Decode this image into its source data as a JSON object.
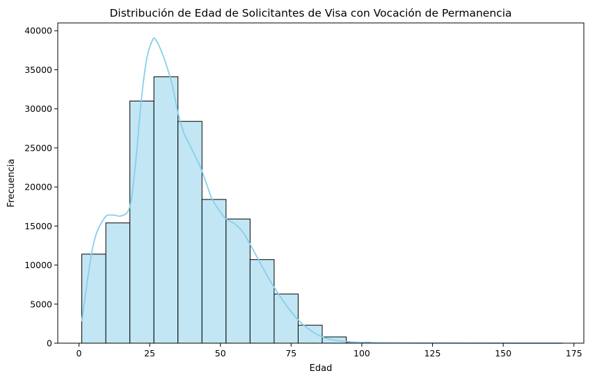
{
  "chart_data": {
    "type": "bar",
    "title": "Distribución de Edad de Solicitantes de Visa con Vocación de Permanencia",
    "xlabel": "Edad",
    "ylabel": "Frecuencia",
    "xlim": [
      -7.5,
      178.5
    ],
    "ylim": [
      0,
      41000
    ],
    "xticks": [
      0,
      25,
      50,
      75,
      100,
      125,
      150,
      175
    ],
    "yticks": [
      0,
      5000,
      10000,
      15000,
      20000,
      25000,
      30000,
      35000,
      40000
    ],
    "grid": false,
    "legend": "none",
    "bins": [
      {
        "x0": 1.0,
        "x1": 9.5,
        "value": 11400
      },
      {
        "x0": 9.5,
        "x1": 18.0,
        "value": 15400
      },
      {
        "x0": 18.0,
        "x1": 26.5,
        "value": 31000
      },
      {
        "x0": 26.5,
        "x1": 35.0,
        "value": 34100
      },
      {
        "x0": 35.0,
        "x1": 43.5,
        "value": 28400
      },
      {
        "x0": 43.5,
        "x1": 52.0,
        "value": 18400
      },
      {
        "x0": 52.0,
        "x1": 60.5,
        "value": 15900
      },
      {
        "x0": 60.5,
        "x1": 69.0,
        "value": 10700
      },
      {
        "x0": 69.0,
        "x1": 77.5,
        "value": 6300
      },
      {
        "x0": 77.5,
        "x1": 86.0,
        "value": 2300
      },
      {
        "x0": 86.0,
        "x1": 94.5,
        "value": 800
      },
      {
        "x0": 94.5,
        "x1": 103.0,
        "value": 120
      },
      {
        "x0": 103.0,
        "x1": 111.5,
        "value": 40
      },
      {
        "x0": 111.5,
        "x1": 120.0,
        "value": 15
      },
      {
        "x0": 120.0,
        "x1": 128.5,
        "value": 10
      },
      {
        "x0": 128.5,
        "x1": 137.0,
        "value": 5
      },
      {
        "x0": 137.0,
        "x1": 145.5,
        "value": 3
      },
      {
        "x0": 145.5,
        "x1": 154.0,
        "value": 2
      },
      {
        "x0": 154.0,
        "x1": 162.5,
        "value": 2
      },
      {
        "x0": 162.5,
        "x1": 171.0,
        "value": 1
      }
    ],
    "kde": {
      "x": [
        1,
        5,
        9,
        12,
        15,
        18,
        20,
        22,
        24,
        26,
        27,
        29,
        31,
        33,
        35,
        37,
        39,
        41,
        43,
        45,
        47,
        50,
        52,
        55,
        58,
        60,
        63,
        66,
        70,
        74,
        78,
        82,
        86,
        90,
        95,
        100,
        110,
        120,
        140,
        171
      ],
      "y": [
        2800,
        12500,
        16000,
        16400,
        16300,
        17500,
        23000,
        31000,
        36500,
        38800,
        38900,
        37500,
        35500,
        33000,
        29500,
        27000,
        25500,
        24000,
        22500,
        20500,
        18500,
        16800,
        15900,
        15300,
        14200,
        13000,
        11000,
        9000,
        6600,
        4500,
        2800,
        1600,
        800,
        400,
        200,
        100,
        50,
        30,
        10,
        5
      ]
    },
    "colors": {
      "bar_fill": "#c2e6f4",
      "bar_edge": "#000000",
      "kde_line": "#87ceeb"
    }
  }
}
